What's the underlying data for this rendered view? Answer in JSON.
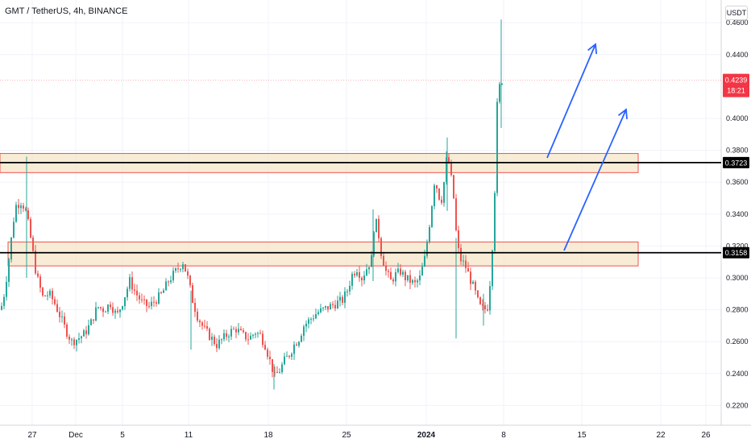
{
  "header": {
    "symbol_title": "GMT / TetherUS, 4h, BINANCE",
    "currency": "USDT"
  },
  "price_scale": {
    "ticks": [
      "0.4600",
      "0.4400",
      "0.4000",
      "0.3800",
      "0.3600",
      "0.3400",
      "0.3200",
      "0.3000",
      "0.2800",
      "0.2600",
      "0.2400",
      "0.2200"
    ]
  },
  "time_axis": {
    "ticks": [
      "27",
      "Dec",
      "5",
      "11",
      "18",
      "25",
      "2024",
      "8",
      "15",
      "22",
      "26"
    ]
  },
  "current_price": {
    "value": "0.4239",
    "countdown": "18:21",
    "color": "#f23645"
  },
  "levels": [
    {
      "value": "0.3723",
      "label": "0.3723"
    },
    {
      "value": "0.3158",
      "label": "0.3158"
    }
  ],
  "zones": [
    {
      "from": 0.366,
      "to": 0.378
    },
    {
      "from": 0.3075,
      "to": 0.3225
    }
  ],
  "colors": {
    "up": "#26a69a",
    "down": "#ef5350",
    "zone_fill": "#f5e6c8",
    "zone_border": "#ef5350",
    "arrow": "#2962ff",
    "level": "#000000"
  },
  "chart_data": {
    "type": "candlestick",
    "symbol": "GMT / TetherUS",
    "interval": "4h",
    "exchange": "BINANCE",
    "y_unit": "USDT",
    "ylim": [
      0.21,
      0.47
    ],
    "x_labels": [
      "27",
      "Dec",
      "5",
      "11",
      "18",
      "25",
      "2024",
      "8",
      "15",
      "22",
      "26"
    ],
    "close_path": [
      [
        0,
        0.28
      ],
      [
        5,
        0.292
      ],
      [
        10,
        0.312
      ],
      [
        18,
        0.345
      ],
      [
        26,
        0.348
      ],
      [
        32,
        0.34
      ],
      [
        38,
        0.322
      ],
      [
        44,
        0.302
      ],
      [
        52,
        0.288
      ],
      [
        60,
        0.29
      ],
      [
        66,
        0.285
      ],
      [
        72,
        0.278
      ],
      [
        80,
        0.268
      ],
      [
        88,
        0.26
      ],
      [
        96,
        0.262
      ],
      [
        104,
        0.265
      ],
      [
        112,
        0.272
      ],
      [
        120,
        0.282
      ],
      [
        128,
        0.28
      ],
      [
        136,
        0.284
      ],
      [
        144,
        0.276
      ],
      [
        152,
        0.286
      ],
      [
        160,
        0.298
      ],
      [
        168,
        0.29
      ],
      [
        176,
        0.284
      ],
      [
        184,
        0.282
      ],
      [
        192,
        0.286
      ],
      [
        200,
        0.29
      ],
      [
        208,
        0.298
      ],
      [
        214,
        0.302
      ],
      [
        220,
        0.306
      ],
      [
        226,
        0.31
      ],
      [
        232,
        0.3
      ],
      [
        238,
        0.286
      ],
      [
        244,
        0.276
      ],
      [
        252,
        0.268
      ],
      [
        260,
        0.263
      ],
      [
        268,
        0.258
      ],
      [
        276,
        0.262
      ],
      [
        284,
        0.266
      ],
      [
        292,
        0.268
      ],
      [
        300,
        0.264
      ],
      [
        308,
        0.262
      ],
      [
        316,
        0.266
      ],
      [
        322,
        0.264
      ],
      [
        328,
        0.258
      ],
      [
        334,
        0.248
      ],
      [
        340,
        0.238
      ],
      [
        346,
        0.242
      ],
      [
        352,
        0.248
      ],
      [
        358,
        0.252
      ],
      [
        364,
        0.258
      ],
      [
        370,
        0.262
      ],
      [
        376,
        0.27
      ],
      [
        384,
        0.274
      ],
      [
        392,
        0.278
      ],
      [
        400,
        0.28
      ],
      [
        408,
        0.282
      ],
      [
        416,
        0.284
      ],
      [
        424,
        0.286
      ],
      [
        430,
        0.292
      ],
      [
        436,
        0.302
      ],
      [
        442,
        0.306
      ],
      [
        448,
        0.3
      ],
      [
        454,
        0.306
      ],
      [
        460,
        0.312
      ],
      [
        464,
        0.338
      ],
      [
        468,
        0.33
      ],
      [
        472,
        0.316
      ],
      [
        478,
        0.304
      ],
      [
        484,
        0.298
      ],
      [
        490,
        0.302
      ],
      [
        496,
        0.304
      ],
      [
        502,
        0.3
      ],
      [
        508,
        0.298
      ],
      [
        514,
        0.296
      ],
      [
        520,
        0.3
      ],
      [
        526,
        0.312
      ],
      [
        530,
        0.326
      ],
      [
        534,
        0.342
      ],
      [
        538,
        0.36
      ],
      [
        542,
        0.356
      ],
      [
        546,
        0.346
      ],
      [
        550,
        0.36
      ],
      [
        554,
        0.378
      ],
      [
        558,
        0.366
      ],
      [
        562,
        0.35
      ],
      [
        566,
        0.322
      ],
      [
        570,
        0.312
      ],
      [
        576,
        0.308
      ],
      [
        582,
        0.3
      ],
      [
        588,
        0.292
      ],
      [
        594,
        0.282
      ],
      [
        600,
        0.28
      ],
      [
        604,
        0.282
      ],
      [
        608,
        0.302
      ],
      [
        612,
        0.338
      ],
      [
        616,
        0.408
      ],
      [
        620,
        0.424
      ],
      [
        622,
        0.4239
      ]
    ],
    "wicks": [
      [
        33,
        0.376,
        0.3
      ],
      [
        237,
        0.292,
        0.255
      ],
      [
        340,
        0.246,
        0.23
      ],
      [
        463,
        0.343,
        0.298
      ],
      [
        555,
        0.388,
        0.342
      ],
      [
        566,
        0.325,
        0.262
      ],
      [
        600,
        0.29,
        0.27
      ],
      [
        622,
        0.462,
        0.394
      ]
    ]
  }
}
